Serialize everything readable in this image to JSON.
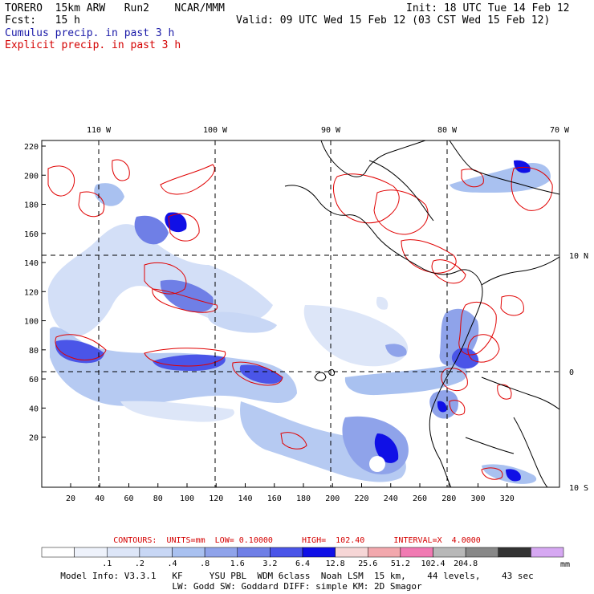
{
  "header": {
    "model": "TORERO  15km ARW   Run2    NCAR/MMM",
    "init": "Init: 18 UTC Tue 14 Feb 12",
    "fcst": "Fcst:   15 h",
    "valid": "Valid: 09 UTC Wed 15 Feb 12 (03 CST Wed 15 Feb 12)",
    "field1": "Cumulus precip. in past 3 h",
    "field2": "Explicit precip. in past 3 h"
  },
  "axes": {
    "top_lon_labels": [
      "110 W",
      "100 W",
      "90 W",
      "80 W",
      "70 W"
    ],
    "right_lat_labels": [
      "10 N",
      "0",
      "10 S"
    ],
    "left_y_ticks": [
      "220",
      "200",
      "180",
      "160",
      "140",
      "120",
      "100",
      "80",
      "60",
      "40",
      "20"
    ],
    "bottom_x_ticks": [
      "20",
      "40",
      "60",
      "80",
      "100",
      "120",
      "140",
      "160",
      "180",
      "200",
      "220",
      "240",
      "260",
      "280",
      "300",
      "320"
    ]
  },
  "contours": {
    "text": "CONTOURS:  UNITS=mm  LOW= 0.10000      HIGH=  102.40      INTERVAL=X  4.0000"
  },
  "colorbar": {
    "colors": [
      "#ffffff",
      "#eef2fb",
      "#dde6f8",
      "#c8d7f5",
      "#a9c1f0",
      "#8fa3ea",
      "#6f7fe6",
      "#4a55e8",
      "#1010e6",
      "#f6d6d6",
      "#f2a8ad",
      "#f07ab2",
      "#b8b8b8",
      "#888888",
      "#333333",
      "#d6a8f2"
    ],
    "labels": [
      ".1",
      ".2",
      ".4",
      ".8",
      "1.6",
      "3.2",
      "6.4",
      "12.8",
      "25.6",
      "51.2",
      "102.4",
      "204.8"
    ],
    "unit": "mm"
  },
  "model_info": {
    "line1": "Model Info: V3.3.1   KF     YSU PBL  WDM 6class  Noah LSM  15 km,    44 levels,    43 sec",
    "line2": "LW: Godd SW: Goddard DIFF: simple KM: 2D Smagor"
  }
}
